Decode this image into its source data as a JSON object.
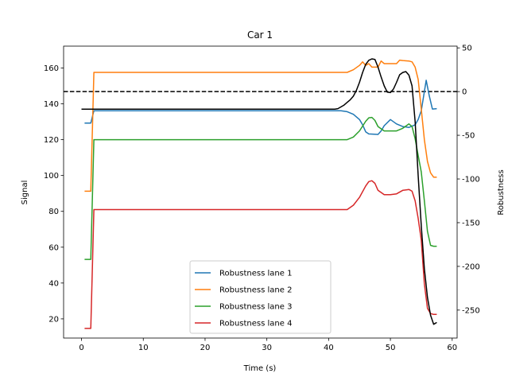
{
  "chart_data": {
    "type": "line",
    "title": "Car 1",
    "xlabel": "Time (s)",
    "ylabel": "Signal",
    "y2label": "Robustness",
    "xlim": [
      -2.9,
      60.8
    ],
    "ylim": [
      9.3,
      172.2
    ],
    "y2lim": [
      -282,
      52
    ],
    "xticks": [
      0,
      10,
      20,
      30,
      40,
      50,
      60
    ],
    "yticks": [
      20,
      40,
      60,
      80,
      100,
      120,
      140,
      160
    ],
    "y2ticks": [
      -250,
      -200,
      -150,
      -100,
      -50,
      0,
      50
    ],
    "grid": false,
    "legend_position": "lower center",
    "reference_line": {
      "axis": "right",
      "y": 0,
      "style": "dashed",
      "color": "#000000"
    },
    "signal": {
      "axis": "left",
      "color": "#000000",
      "points": [
        [
          0,
          137
        ],
        [
          41,
          137
        ],
        [
          41.5,
          137.3
        ],
        [
          42,
          138.3
        ],
        [
          42.5,
          139.3
        ],
        [
          43,
          140.8
        ],
        [
          43.5,
          142.3
        ],
        [
          44,
          144.3
        ],
        [
          44.5,
          147.5
        ],
        [
          45,
          152
        ],
        [
          45.5,
          157.5
        ],
        [
          46,
          162
        ],
        [
          46.5,
          164.3
        ],
        [
          47,
          165.1
        ],
        [
          47.5,
          164.8
        ],
        [
          48,
          160.5
        ],
        [
          48.5,
          155
        ],
        [
          49,
          150
        ],
        [
          49.5,
          146.5
        ],
        [
          50,
          146.3
        ],
        [
          50.5,
          148.3
        ],
        [
          51,
          152
        ],
        [
          51.5,
          156.2
        ],
        [
          52,
          157.5
        ],
        [
          52.5,
          158
        ],
        [
          53,
          156
        ],
        [
          53.5,
          150
        ],
        [
          54,
          130
        ],
        [
          54.5,
          100
        ],
        [
          55,
          72
        ],
        [
          55.5,
          48
        ],
        [
          56,
          32
        ],
        [
          56.5,
          22
        ],
        [
          57,
          17
        ],
        [
          57.5,
          18
        ]
      ]
    },
    "series": [
      {
        "name": "Robustness lane 1",
        "axis": "right",
        "color": "#1f77b4",
        "points": [
          [
            0.5,
            -36
          ],
          [
            1.5,
            -36
          ],
          [
            2,
            -22
          ],
          [
            42,
            -22
          ],
          [
            43,
            -23
          ],
          [
            44,
            -26
          ],
          [
            45,
            -32
          ],
          [
            45.5,
            -38
          ],
          [
            46,
            -46
          ],
          [
            46.5,
            -48.5
          ],
          [
            48,
            -49
          ],
          [
            48.5,
            -45
          ],
          [
            49,
            -39
          ],
          [
            50,
            -32
          ],
          [
            51,
            -37
          ],
          [
            52,
            -40
          ],
          [
            53,
            -41
          ],
          [
            54,
            -38
          ],
          [
            54.5,
            -32
          ],
          [
            55,
            -22
          ],
          [
            55.5,
            0
          ],
          [
            55.8,
            13
          ],
          [
            56.3,
            -5
          ],
          [
            56.8,
            -20
          ],
          [
            57.5,
            -19.5
          ]
        ]
      },
      {
        "name": "Robustness lane 2",
        "axis": "right",
        "color": "#ff7f0e",
        "points": [
          [
            0.5,
            -114
          ],
          [
            1.5,
            -114
          ],
          [
            2,
            22
          ],
          [
            43,
            22
          ],
          [
            44,
            25
          ],
          [
            45,
            30
          ],
          [
            45.5,
            34
          ],
          [
            46,
            30
          ],
          [
            46.5,
            32
          ],
          [
            47,
            28
          ],
          [
            48,
            28
          ],
          [
            48.5,
            35
          ],
          [
            49,
            32
          ],
          [
            50,
            32
          ],
          [
            51,
            32
          ],
          [
            51.5,
            36
          ],
          [
            52,
            35.5
          ],
          [
            53,
            35
          ],
          [
            53.5,
            34
          ],
          [
            54,
            28
          ],
          [
            54.5,
            14
          ],
          [
            55,
            -20
          ],
          [
            55.5,
            -55
          ],
          [
            56,
            -80
          ],
          [
            56.5,
            -93
          ],
          [
            57,
            -98
          ],
          [
            57.5,
            -98
          ]
        ]
      },
      {
        "name": "Robustness lane 3",
        "axis": "right",
        "color": "#2ca02c",
        "points": [
          [
            0.5,
            -192
          ],
          [
            1.5,
            -192
          ],
          [
            2,
            -55
          ],
          [
            43,
            -55
          ],
          [
            44,
            -52
          ],
          [
            45,
            -45
          ],
          [
            46,
            -34
          ],
          [
            46.5,
            -30
          ],
          [
            47,
            -29.5
          ],
          [
            47.5,
            -33
          ],
          [
            48,
            -40
          ],
          [
            49,
            -45
          ],
          [
            50,
            -45
          ],
          [
            51,
            -45
          ],
          [
            52,
            -42
          ],
          [
            53,
            -37
          ],
          [
            53.5,
            -40
          ],
          [
            54,
            -54
          ],
          [
            54.5,
            -73
          ],
          [
            55,
            -92
          ],
          [
            55.5,
            -125
          ],
          [
            56,
            -160
          ],
          [
            56.5,
            -176
          ],
          [
            57,
            -177
          ],
          [
            57.5,
            -177
          ]
        ]
      },
      {
        "name": "Robustness lane 4",
        "axis": "right",
        "color": "#d62728",
        "points": [
          [
            0.5,
            -271
          ],
          [
            1.5,
            -271
          ],
          [
            2,
            -135
          ],
          [
            43,
            -135
          ],
          [
            44,
            -130
          ],
          [
            45,
            -121
          ],
          [
            46,
            -108
          ],
          [
            46.5,
            -103
          ],
          [
            47,
            -102
          ],
          [
            47.5,
            -105
          ],
          [
            48,
            -113
          ],
          [
            49,
            -118
          ],
          [
            50,
            -118
          ],
          [
            51,
            -117
          ],
          [
            52,
            -113
          ],
          [
            53,
            -112
          ],
          [
            53.5,
            -114
          ],
          [
            54,
            -125
          ],
          [
            54.5,
            -145
          ],
          [
            55,
            -170
          ],
          [
            55.5,
            -220
          ],
          [
            56,
            -248
          ],
          [
            56.5,
            -254
          ],
          [
            57,
            -255
          ],
          [
            57.5,
            -255
          ]
        ]
      }
    ]
  }
}
